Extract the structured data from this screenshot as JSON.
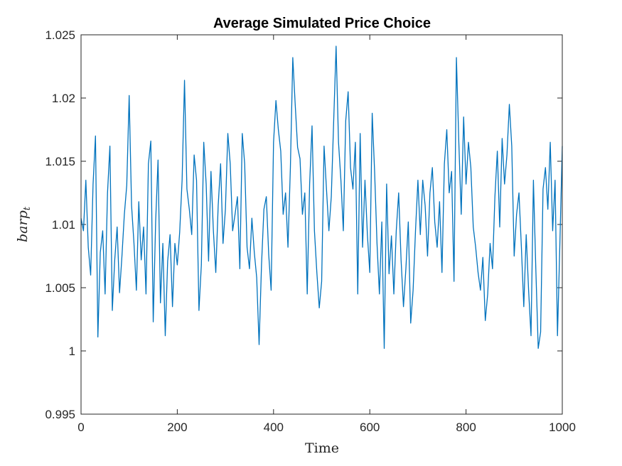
{
  "chart_data": {
    "type": "line",
    "title": "Average Simulated Price Choice",
    "xlabel": "Time",
    "ylabel": "barp",
    "ylabel_subscript": "t",
    "xlim": [
      0,
      1000
    ],
    "ylim": [
      0.995,
      1.025
    ],
    "x_ticks": [
      "0",
      "200",
      "400",
      "600",
      "800",
      "1000"
    ],
    "y_ticks": [
      "0.995",
      "1",
      "1.005",
      "1.01",
      "1.015",
      "1.02",
      "1.025"
    ],
    "grid": false,
    "legend": "none",
    "line_color": "#0072bd",
    "series": [
      {
        "x": [
          0,
          5,
          10,
          15,
          20,
          25,
          30,
          35,
          40,
          45,
          50,
          55,
          60,
          65,
          70,
          75,
          80,
          85,
          90,
          95,
          100,
          105,
          110,
          115,
          120,
          125,
          130,
          135,
          140,
          145,
          150,
          155,
          160,
          165,
          170,
          175,
          180,
          185,
          190,
          195,
          200,
          205,
          210,
          215,
          220,
          225,
          230,
          235,
          240,
          245,
          250,
          255,
          260,
          265,
          270,
          275,
          280,
          285,
          290,
          295,
          300,
          305,
          310,
          315,
          320,
          325,
          330,
          335,
          340,
          345,
          350,
          355,
          360,
          365,
          370,
          375,
          380,
          385,
          390,
          395,
          400,
          405,
          410,
          415,
          420,
          425,
          430,
          435,
          440,
          445,
          450,
          455,
          460,
          465,
          470,
          475,
          480,
          485,
          490,
          495,
          500,
          505,
          510,
          515,
          520,
          525,
          530,
          535,
          540,
          545,
          550,
          555,
          560,
          565,
          570,
          575,
          580,
          585,
          590,
          595,
          600,
          605,
          610,
          615,
          620,
          625,
          630,
          635,
          640,
          645,
          650,
          655,
          660,
          665,
          670,
          675,
          680,
          685,
          690,
          695,
          700,
          705,
          710,
          715,
          720,
          725,
          730,
          735,
          740,
          745,
          750,
          755,
          760,
          765,
          770,
          775,
          780,
          785,
          790,
          795,
          800,
          805,
          810,
          815,
          820,
          825,
          830,
          835,
          840,
          845,
          850,
          855,
          860,
          865,
          870,
          875,
          880,
          885,
          890,
          895,
          900,
          905,
          910,
          915,
          920,
          925,
          930,
          935,
          940,
          945,
          950,
          955,
          960,
          965,
          970,
          975,
          980,
          985,
          990,
          995,
          1000
        ],
        "values": [
          1.0105,
          1.0095,
          1.0135,
          1.0082,
          1.006,
          1.0132,
          1.017,
          1.0011,
          1.0078,
          1.0095,
          1.0045,
          1.0125,
          1.0162,
          1.0032,
          1.0072,
          1.0098,
          1.0046,
          1.0075,
          1.0108,
          1.0131,
          1.0202,
          1.0115,
          1.0085,
          1.0048,
          1.0118,
          1.0072,
          1.0098,
          1.0045,
          1.0148,
          1.0166,
          1.0023,
          1.0102,
          1.0151,
          1.0038,
          1.0085,
          1.0012,
          1.0071,
          1.0092,
          1.0035,
          1.0085,
          1.0068,
          1.0094,
          1.0135,
          1.0214,
          1.0128,
          1.0112,
          1.0092,
          1.0155,
          1.0135,
          1.0032,
          1.0068,
          1.0165,
          1.0132,
          1.0071,
          1.0142,
          1.0095,
          1.0062,
          1.0115,
          1.0148,
          1.0085,
          1.0112,
          1.0172,
          1.0148,
          1.0095,
          1.0108,
          1.0122,
          1.0065,
          1.0172,
          1.0148,
          1.0082,
          1.0065,
          1.0105,
          1.0078,
          1.0058,
          1.0005,
          1.0068,
          1.0112,
          1.0122,
          1.0076,
          1.0048,
          1.0165,
          1.0198,
          1.0175,
          1.0158,
          1.0108,
          1.0125,
          1.0082,
          1.0145,
          1.0232,
          1.0195,
          1.0161,
          1.0152,
          1.0108,
          1.0125,
          1.0045,
          1.0132,
          1.0178,
          1.0095,
          1.0062,
          1.0034,
          1.0055,
          1.0162,
          1.0128,
          1.0095,
          1.0122,
          1.0182,
          1.0241,
          1.0165,
          1.0135,
          1.0095,
          1.0182,
          1.0205,
          1.0145,
          1.0128,
          1.0165,
          1.0045,
          1.0172,
          1.0082,
          1.0135,
          1.0092,
          1.0062,
          1.0188,
          1.0142,
          1.0085,
          1.0045,
          1.0102,
          1.0002,
          1.0132,
          1.0061,
          1.0091,
          1.0045,
          1.0095,
          1.0125,
          1.0072,
          1.0035,
          1.0065,
          1.0102,
          1.0022,
          1.0048,
          1.0095,
          1.0135,
          1.0092,
          1.0135,
          1.0115,
          1.0075,
          1.0125,
          1.0145,
          1.0102,
          1.0082,
          1.0118,
          1.0062,
          1.0148,
          1.0175,
          1.0125,
          1.0142,
          1.0055,
          1.0232,
          1.0165,
          1.0108,
          1.0185,
          1.0132,
          1.0165,
          1.0145,
          1.0098,
          1.0082,
          1.0062,
          1.0048,
          1.0074,
          1.0024,
          1.0045,
          1.0085,
          1.0065,
          1.0122,
          1.0158,
          1.0098,
          1.0168,
          1.0132,
          1.0155,
          1.0195,
          1.0162,
          1.0075,
          1.0108,
          1.0125,
          1.0082,
          1.0035,
          1.0092,
          1.0048,
          1.0012,
          1.0135,
          1.0065,
          1.0002,
          1.0015,
          1.0128,
          1.0145,
          1.0112,
          1.0165,
          1.0095,
          1.0135,
          1.0012,
          1.0085,
          1.0162
        ]
      }
    ]
  }
}
